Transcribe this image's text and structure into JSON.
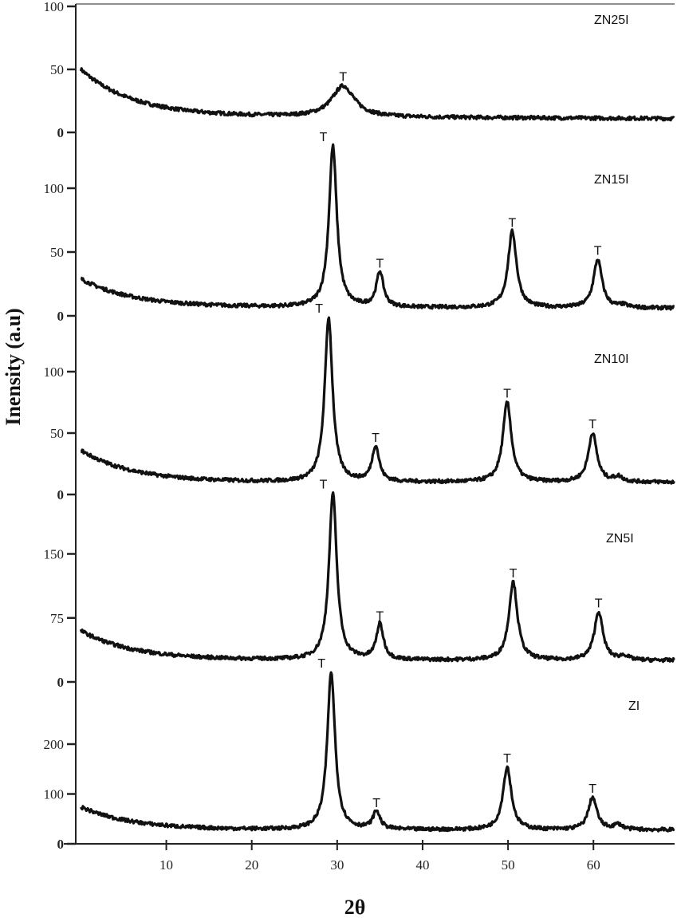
{
  "chart_data": {
    "type": "line",
    "title": "",
    "xlabel": "2θ",
    "ylabel": "Inensity (a.u)",
    "xlim": [
      -0.6,
      69.5
    ],
    "x_ticks": [
      10,
      20,
      30,
      40,
      50,
      60
    ],
    "x_tick_labels": [
      "10",
      "20",
      "30",
      "40",
      "50",
      "60"
    ],
    "grid": false,
    "peak_marker": "T",
    "series": [
      {
        "name": "ZN25I",
        "y_ticks": [
          0,
          50,
          100
        ],
        "y_tick_labels": [
          "0",
          "50",
          "100"
        ],
        "ylim": [
          0,
          100
        ],
        "baseline_start": 50,
        "baseline_floor": 13,
        "baseline_end": 11,
        "decay": 6,
        "peaks": [
          {
            "x": 30.7,
            "height": 37,
            "width": 1.6,
            "marked": true
          }
        ]
      },
      {
        "name": "ZN15I",
        "y_ticks": [
          0,
          50,
          100
        ],
        "y_tick_labels": [
          "0",
          "50",
          "100"
        ],
        "ylim": [
          0,
          140
        ],
        "baseline_start": 29,
        "baseline_floor": 7,
        "baseline_end": 6,
        "decay": 6,
        "peaks": [
          {
            "x": 29.5,
            "height": 133,
            "width": 0.55,
            "marked": true
          },
          {
            "x": 35.0,
            "height": 34,
            "width": 0.5,
            "marked": true
          },
          {
            "x": 50.5,
            "height": 66,
            "width": 0.6,
            "marked": true
          },
          {
            "x": 60.5,
            "height": 44,
            "width": 0.6,
            "marked": true
          },
          {
            "x": 63.5,
            "height": 8,
            "width": 0.6,
            "marked": false
          }
        ]
      },
      {
        "name": "ZN10I",
        "y_ticks": [
          0,
          50,
          100
        ],
        "y_tick_labels": [
          "0",
          "50",
          "100"
        ],
        "ylim": [
          0,
          145
        ],
        "baseline_start": 36,
        "baseline_floor": 10,
        "baseline_end": 10,
        "decay": 6,
        "peaks": [
          {
            "x": 29.0,
            "height": 144,
            "width": 0.55,
            "marked": true
          },
          {
            "x": 34.5,
            "height": 39,
            "width": 0.5,
            "marked": true
          },
          {
            "x": 49.9,
            "height": 75,
            "width": 0.6,
            "marked": true
          },
          {
            "x": 59.9,
            "height": 50,
            "width": 0.6,
            "marked": true
          },
          {
            "x": 62.9,
            "height": 14,
            "width": 0.6,
            "marked": false
          }
        ]
      },
      {
        "name": "ZN5I",
        "y_ticks": [
          0,
          75,
          150
        ],
        "y_tick_labels": [
          "0",
          "75",
          "150"
        ],
        "ylim": [
          0,
          225
        ],
        "baseline_start": 60,
        "baseline_floor": 26,
        "baseline_end": 25,
        "decay": 6,
        "peaks": [
          {
            "x": 29.5,
            "height": 221,
            "width": 0.55,
            "marked": true
          },
          {
            "x": 35.0,
            "height": 67,
            "width": 0.5,
            "marked": true
          },
          {
            "x": 50.6,
            "height": 117,
            "width": 0.6,
            "marked": true
          },
          {
            "x": 60.6,
            "height": 82,
            "width": 0.6,
            "marked": true
          },
          {
            "x": 63.6,
            "height": 30,
            "width": 0.6,
            "marked": false
          }
        ]
      },
      {
        "name": "ZI",
        "y_ticks": [
          0,
          100,
          200
        ],
        "y_tick_labels": [
          "0",
          "100",
          "200"
        ],
        "ylim": [
          0,
          345
        ],
        "baseline_start": 74,
        "baseline_floor": 28,
        "baseline_end": 28,
        "decay": 6,
        "peaks": [
          {
            "x": 29.3,
            "height": 344,
            "width": 0.55,
            "marked": true
          },
          {
            "x": 34.6,
            "height": 64,
            "width": 0.5,
            "marked": true
          },
          {
            "x": 49.9,
            "height": 154,
            "width": 0.6,
            "marked": true
          },
          {
            "x": 59.9,
            "height": 93,
            "width": 0.6,
            "marked": true
          },
          {
            "x": 62.9,
            "height": 38,
            "width": 0.6,
            "marked": false
          }
        ]
      }
    ]
  }
}
